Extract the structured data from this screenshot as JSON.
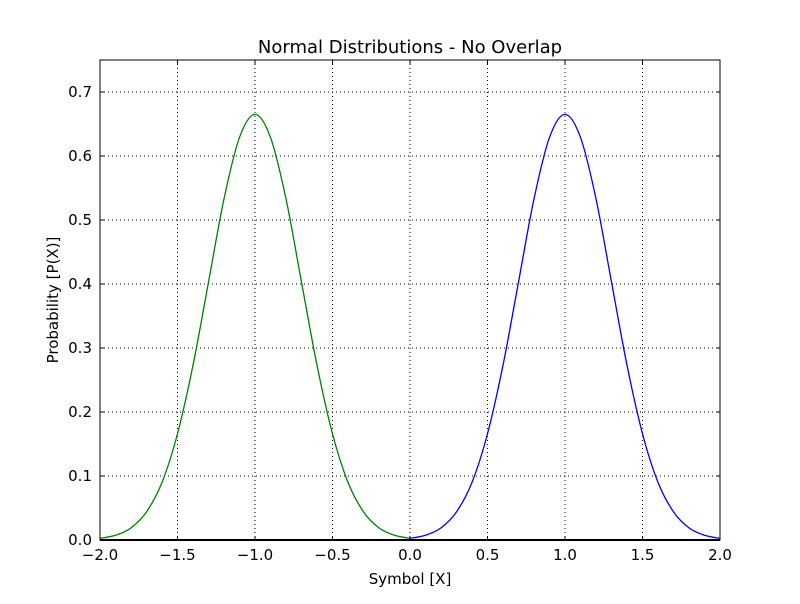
{
  "chart_data": {
    "type": "line",
    "title": "Normal Distributions - No Overlap",
    "xlabel": "Symbol [X]",
    "ylabel": "Probability [P(X)]",
    "xlim": [
      -2.0,
      2.0
    ],
    "ylim": [
      0.0,
      0.75
    ],
    "xticks": [
      "−2.0",
      "−1.5",
      "−1.0",
      "−0.5",
      "0.0",
      "0.5",
      "1.0",
      "1.5",
      "2.0"
    ],
    "xtick_values": [
      -2.0,
      -1.5,
      -1.0,
      -0.5,
      0.0,
      0.5,
      1.0,
      1.5,
      2.0
    ],
    "yticks": [
      "0.0",
      "0.1",
      "0.2",
      "0.3",
      "0.4",
      "0.5",
      "0.6",
      "0.7"
    ],
    "ytick_values": [
      0.0,
      0.1,
      0.2,
      0.3,
      0.4,
      0.5,
      0.6,
      0.7
    ],
    "grid": true,
    "series": [
      {
        "name": "green",
        "color": "#008000",
        "x": [
          -2.0,
          -1.9,
          -1.8,
          -1.7,
          -1.6,
          -1.5,
          -1.4,
          -1.3,
          -1.2,
          -1.1,
          -1.0,
          -0.9,
          -0.8,
          -0.7,
          -0.6,
          -0.5,
          -0.4,
          -0.3,
          -0.2,
          -0.1,
          0.0
        ],
        "y": [
          0.0026,
          0.0074,
          0.019,
          0.044,
          0.09,
          0.166,
          0.273,
          0.403,
          0.533,
          0.629,
          0.665,
          0.629,
          0.533,
          0.403,
          0.273,
          0.166,
          0.09,
          0.044,
          0.019,
          0.0074,
          0.0026
        ]
      },
      {
        "name": "blue",
        "color": "#0000ff",
        "x": [
          0.0,
          0.1,
          0.2,
          0.3,
          0.4,
          0.5,
          0.6,
          0.7,
          0.8,
          0.9,
          1.0,
          1.1,
          1.2,
          1.3,
          1.4,
          1.5,
          1.6,
          1.7,
          1.8,
          1.9,
          2.0
        ],
        "y": [
          0.0026,
          0.0074,
          0.019,
          0.044,
          0.09,
          0.166,
          0.273,
          0.403,
          0.533,
          0.629,
          0.665,
          0.629,
          0.533,
          0.403,
          0.273,
          0.166,
          0.09,
          0.044,
          0.019,
          0.0074,
          0.0026
        ]
      }
    ],
    "hline": {
      "y": 0.0,
      "color": "#000000"
    }
  }
}
